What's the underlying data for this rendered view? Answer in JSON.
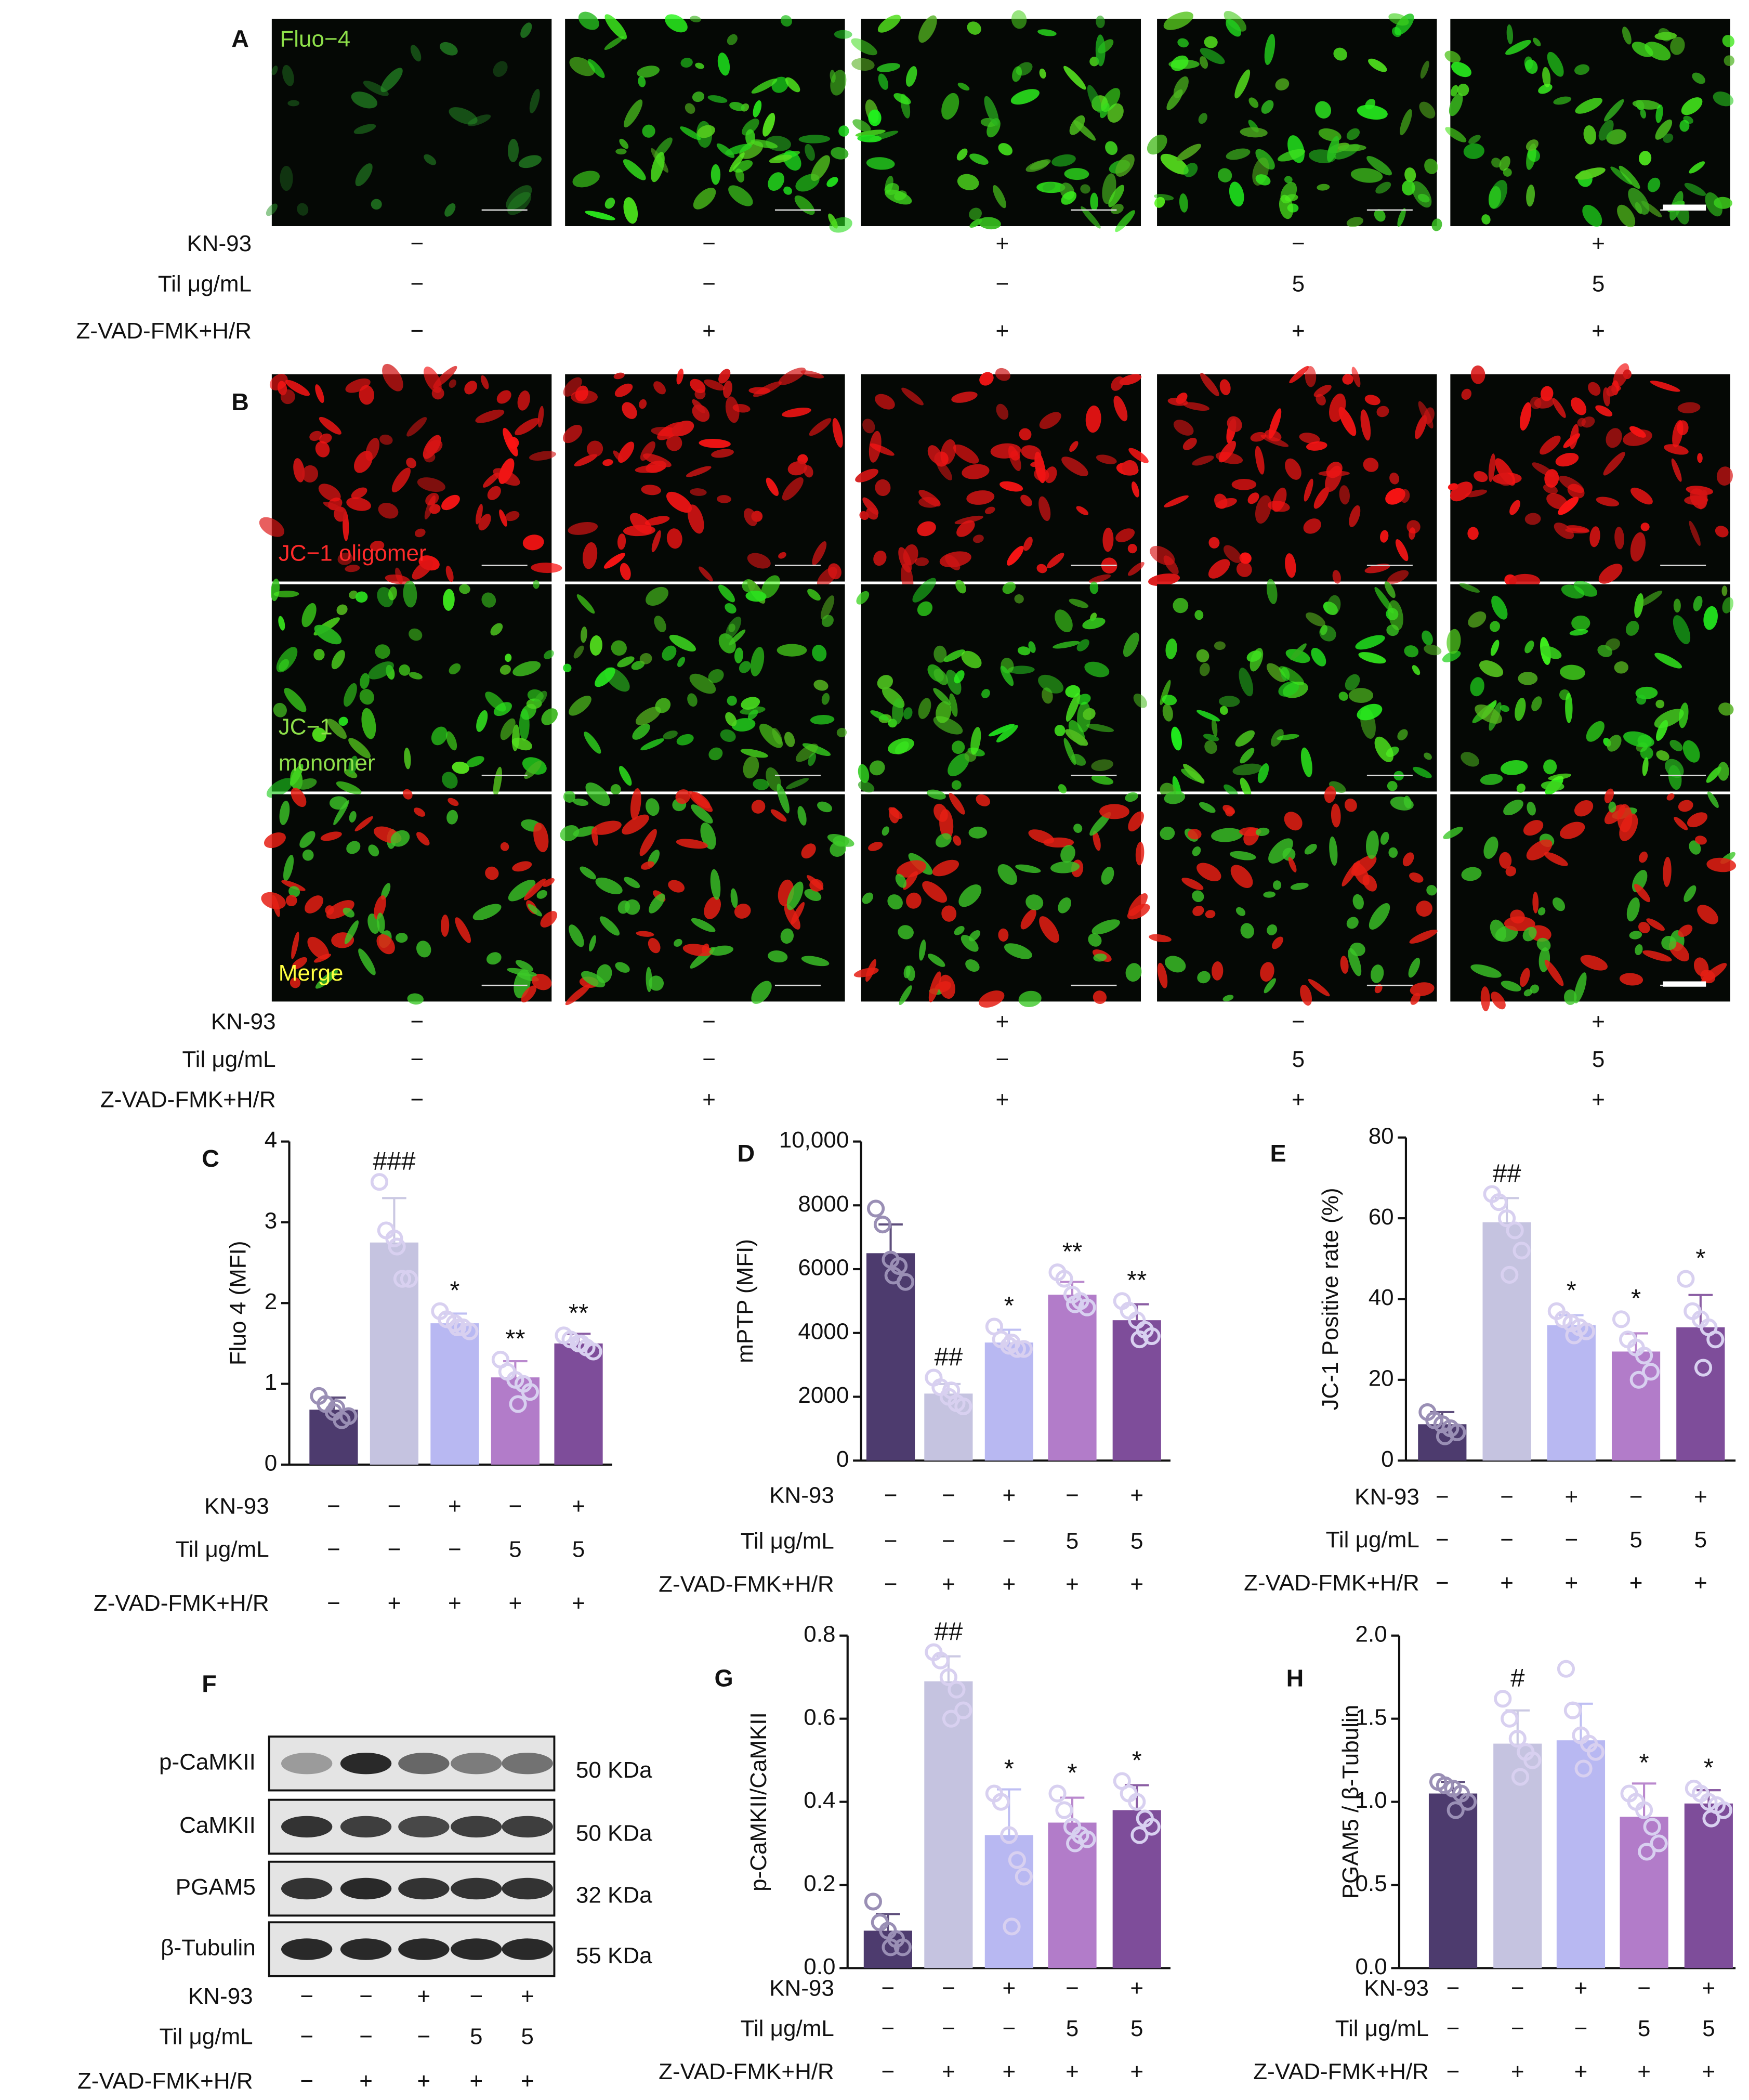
{
  "panel_a": {
    "label": "A",
    "channel": "Fluo−4",
    "conditions": [
      {
        "label": "KN-93",
        "values": [
          "−",
          "−",
          "+",
          "−",
          "+"
        ]
      },
      {
        "label": "Til  μg/mL",
        "values": [
          "−",
          "−",
          "−",
          "5",
          "5"
        ]
      },
      {
        "label": "Z-VAD-FMK+H/R",
        "values": [
          "−",
          "+",
          "+",
          "+",
          "+"
        ]
      }
    ]
  },
  "panel_b": {
    "label": "B",
    "channels": [
      [
        "JC−1 oligomer"
      ],
      [
        "JC−1",
        "monomer"
      ],
      [
        "Merge"
      ]
    ],
    "conditions": [
      {
        "label": "KN-93",
        "values": [
          "−",
          "−",
          "+",
          "−",
          "+"
        ]
      },
      {
        "label": "Til μg/mL",
        "values": [
          "−",
          "−",
          "−",
          "5",
          "5"
        ]
      },
      {
        "label": "Z-VAD-FMK+H/R",
        "values": [
          "−",
          "+",
          "+",
          "+",
          "+"
        ]
      }
    ]
  },
  "panel_f": {
    "label": "F",
    "proteins": [
      {
        "name": "p-CaMKII",
        "size": "50 KDa"
      },
      {
        "name": "CaMKII",
        "size": "50 KDa"
      },
      {
        "name": "PGAM5",
        "size": "32 KDa"
      },
      {
        "name": "β-Tubulin",
        "size": "55 KDa"
      }
    ],
    "conditions": [
      {
        "label": "KN-93",
        "values": [
          "−",
          "−",
          "+",
          "−",
          "+"
        ]
      },
      {
        "label": "Til μg/mL",
        "values": [
          "−",
          "−",
          "−",
          "5",
          "5"
        ]
      },
      {
        "label": "Z-VAD-FMK+H/R",
        "values": [
          "−",
          "+",
          "+",
          "+",
          "+"
        ]
      }
    ]
  },
  "chart_data": [
    {
      "type": "bar",
      "panel": "C",
      "y_label": "Fluo 4 (MFI)",
      "colors": [
        "#4d3b6e",
        "#c5c3e0",
        "#b8b8f2",
        "#b27cc9",
        "#7e4d9a"
      ],
      "values": [
        0.68,
        2.75,
        1.75,
        1.08,
        1.5
      ],
      "errors": [
        0.15,
        0.55,
        0.12,
        0.2,
        0.12
      ],
      "points": [
        [
          0.85,
          0.75,
          0.65,
          0.55,
          0.6,
          0.7
        ],
        [
          3.5,
          2.9,
          2.8,
          2.3,
          2.3,
          2.7
        ],
        [
          1.9,
          1.8,
          1.75,
          1.7,
          1.65,
          1.7
        ],
        [
          1.3,
          1.15,
          1.05,
          1.0,
          0.9,
          0.75
        ],
        [
          1.6,
          1.55,
          1.5,
          1.45,
          1.4,
          1.5
        ]
      ],
      "annotations": [
        null,
        "###",
        "*",
        "**",
        "**"
      ],
      "ylim": [
        0,
        4
      ],
      "yticks": [
        0,
        1,
        2,
        3,
        4
      ],
      "conditions": [
        {
          "label": "KN-93",
          "values": [
            "−",
            "−",
            "+",
            "−",
            "+"
          ]
        },
        {
          "label": "Til  μg/mL",
          "values": [
            "−",
            "−",
            "−",
            "5",
            "5"
          ]
        },
        {
          "label": "Z-VAD-FMK+H/R",
          "values": [
            "−",
            "+",
            "+",
            "+",
            "+"
          ]
        }
      ]
    },
    {
      "type": "bar",
      "panel": "D",
      "y_label": "mPTP (MFI)",
      "colors": [
        "#4d3b6e",
        "#c5c3e0",
        "#b8b8f2",
        "#b27cc9",
        "#7e4d9a"
      ],
      "values": [
        6500,
        2100,
        3700,
        5200,
        4400
      ],
      "errors": [
        900,
        300,
        400,
        400,
        500
      ],
      "points": [
        [
          7900,
          7400,
          6300,
          6100,
          5600,
          5800
        ],
        [
          2600,
          2300,
          2000,
          1800,
          1700,
          2200
        ],
        [
          4200,
          3800,
          3600,
          3500,
          3500,
          3700
        ],
        [
          5900,
          5700,
          5200,
          5000,
          4800,
          4900
        ],
        [
          5000,
          4700,
          4400,
          4100,
          3900,
          3800
        ]
      ],
      "annotations": [
        null,
        "##",
        "*",
        "**",
        "**"
      ],
      "ylim": [
        0,
        10000
      ],
      "yticks": [
        0,
        2000,
        4000,
        6000,
        8000,
        {
          "value": 10000,
          "label": "10,000"
        }
      ],
      "conditions": [
        {
          "label": "KN-93",
          "values": [
            "−",
            "−",
            "+",
            "−",
            "+"
          ]
        },
        {
          "label": "Til  μg/mL",
          "values": [
            "−",
            "−",
            "−",
            "5",
            "5"
          ]
        },
        {
          "label": "Z-VAD-FMK+H/R",
          "values": [
            "−",
            "+",
            "+",
            "+",
            "+"
          ]
        }
      ]
    },
    {
      "type": "bar",
      "panel": "E",
      "y_label": "JC-1 Positive rate (%)",
      "colors": [
        "#4d3b6e",
        "#c5c3e0",
        "#b8b8f2",
        "#b27cc9",
        "#7e4d9a"
      ],
      "values": [
        9,
        59,
        33.5,
        27,
        33
      ],
      "errors": [
        3,
        6,
        2.5,
        4.5,
        8
      ],
      "points": [
        [
          12,
          10,
          9,
          8,
          7,
          6
        ],
        [
          66,
          64,
          60,
          57,
          52,
          46
        ],
        [
          37,
          35,
          34,
          33,
          32,
          31
        ],
        [
          35,
          30,
          28,
          26,
          22,
          20
        ],
        [
          45,
          37,
          35,
          33,
          30,
          23
        ]
      ],
      "annotations": [
        null,
        "##",
        "*",
        "*",
        "*"
      ],
      "ylim": [
        0,
        80
      ],
      "yticks": [
        0,
        20,
        40,
        60,
        80
      ],
      "conditions": [
        {
          "label": "KN-93",
          "values": [
            "−",
            "−",
            "+",
            "−",
            "+"
          ]
        },
        {
          "label": "Til μg/mL",
          "values": [
            "−",
            "−",
            "−",
            "5",
            "5"
          ]
        },
        {
          "label": "Z-VAD-FMK+H/R",
          "values": [
            "−",
            "+",
            "+",
            "+",
            "+"
          ]
        }
      ]
    },
    {
      "type": "bar",
      "panel": "G",
      "y_label": "p-CaMKII/CaMKII",
      "colors": [
        "#4d3b6e",
        "#c5c3e0",
        "#b8b8f2",
        "#b27cc9",
        "#7e4d9a"
      ],
      "values": [
        0.09,
        0.69,
        0.32,
        0.35,
        0.38
      ],
      "errors": [
        0.04,
        0.06,
        0.11,
        0.06,
        0.06
      ],
      "points": [
        [
          0.16,
          0.11,
          0.09,
          0.07,
          0.05,
          0.05
        ],
        [
          0.76,
          0.74,
          0.7,
          0.67,
          0.62,
          0.6
        ],
        [
          0.42,
          0.4,
          0.32,
          0.26,
          0.22,
          0.1
        ],
        [
          0.42,
          0.38,
          0.34,
          0.32,
          0.31,
          0.3
        ],
        [
          0.45,
          0.42,
          0.4,
          0.36,
          0.34,
          0.32
        ]
      ],
      "annotations": [
        null,
        "##",
        "*",
        "*",
        "*"
      ],
      "ylim": [
        0,
        0.8
      ],
      "yticks": [
        {
          "value": 0,
          "label": "0.0"
        },
        0.2,
        0.4,
        0.6,
        0.8
      ],
      "conditions": [
        {
          "label": "KN-93",
          "values": [
            "−",
            "−",
            "+",
            "−",
            "+"
          ]
        },
        {
          "label": "Til  μg/mL",
          "values": [
            "−",
            "−",
            "−",
            "5",
            "5"
          ]
        },
        {
          "label": "Z-VAD-FMK+H/R",
          "values": [
            "−",
            "+",
            "+",
            "+",
            "+"
          ]
        }
      ]
    },
    {
      "type": "bar",
      "panel": "H",
      "y_label": "PGAM5 / β-Tubulin",
      "colors": [
        "#4d3b6e",
        "#c5c3e0",
        "#b8b8f2",
        "#b27cc9",
        "#7e4d9a"
      ],
      "values": [
        1.05,
        1.35,
        1.37,
        0.91,
        0.99
      ],
      "errors": [
        0.07,
        0.2,
        0.22,
        0.2,
        0.08
      ],
      "points": [
        [
          1.12,
          1.1,
          1.08,
          1.05,
          1.0,
          0.95
        ],
        [
          1.62,
          1.5,
          1.38,
          1.3,
          1.25,
          1.15
        ],
        [
          1.8,
          1.55,
          1.4,
          1.35,
          1.3,
          1.2
        ],
        [
          1.05,
          1.0,
          0.95,
          0.85,
          0.75,
          0.7
        ],
        [
          1.08,
          1.05,
          1.0,
          0.98,
          0.95,
          0.9
        ]
      ],
      "annotations": [
        null,
        "#",
        null,
        "*",
        "*"
      ],
      "ylim": [
        0,
        2
      ],
      "yticks": [
        {
          "value": 0,
          "label": "0.0"
        },
        0.5,
        {
          "value": 1,
          "label": "1.0"
        },
        1.5,
        {
          "value": 2,
          "label": "2.0"
        }
      ],
      "conditions": [
        {
          "label": "KN-93",
          "values": [
            "−",
            "−",
            "+",
            "−",
            "+"
          ]
        },
        {
          "label": "Til  μg/mL",
          "values": [
            "−",
            "−",
            "−",
            "5",
            "5"
          ]
        },
        {
          "label": "Z-VAD-FMK+H/R",
          "values": [
            "−",
            "+",
            "+",
            "+",
            "+"
          ]
        }
      ]
    }
  ]
}
